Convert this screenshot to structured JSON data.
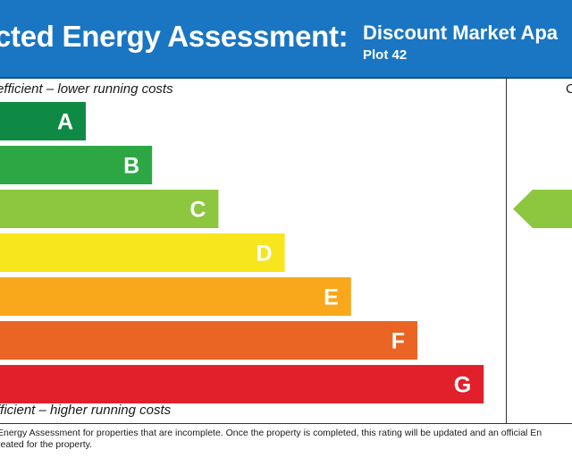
{
  "header": {
    "title": "cted Energy Assessment:",
    "subtitle": "Discount Market Apa",
    "plot": "Plot 42"
  },
  "chart_data": {
    "type": "bar",
    "categories": [
      "A",
      "B",
      "C",
      "D",
      "E",
      "F",
      "G"
    ],
    "colors": [
      "#0f8a45",
      "#2da744",
      "#8dc63f",
      "#f7e51d",
      "#f9a81b",
      "#ea6524",
      "#e2202b"
    ],
    "top_label": "efficient – lower running costs",
    "bottom_label": "fficient – higher running costs",
    "current_rating_header": "C",
    "current_rating_band": "C",
    "current_rating_value": ""
  },
  "footnote": {
    "line1": "Energy Assessment for properties that are incomplete. Once the property is completed, this rating will be updated and an official En",
    "line2": "reated for the property."
  }
}
